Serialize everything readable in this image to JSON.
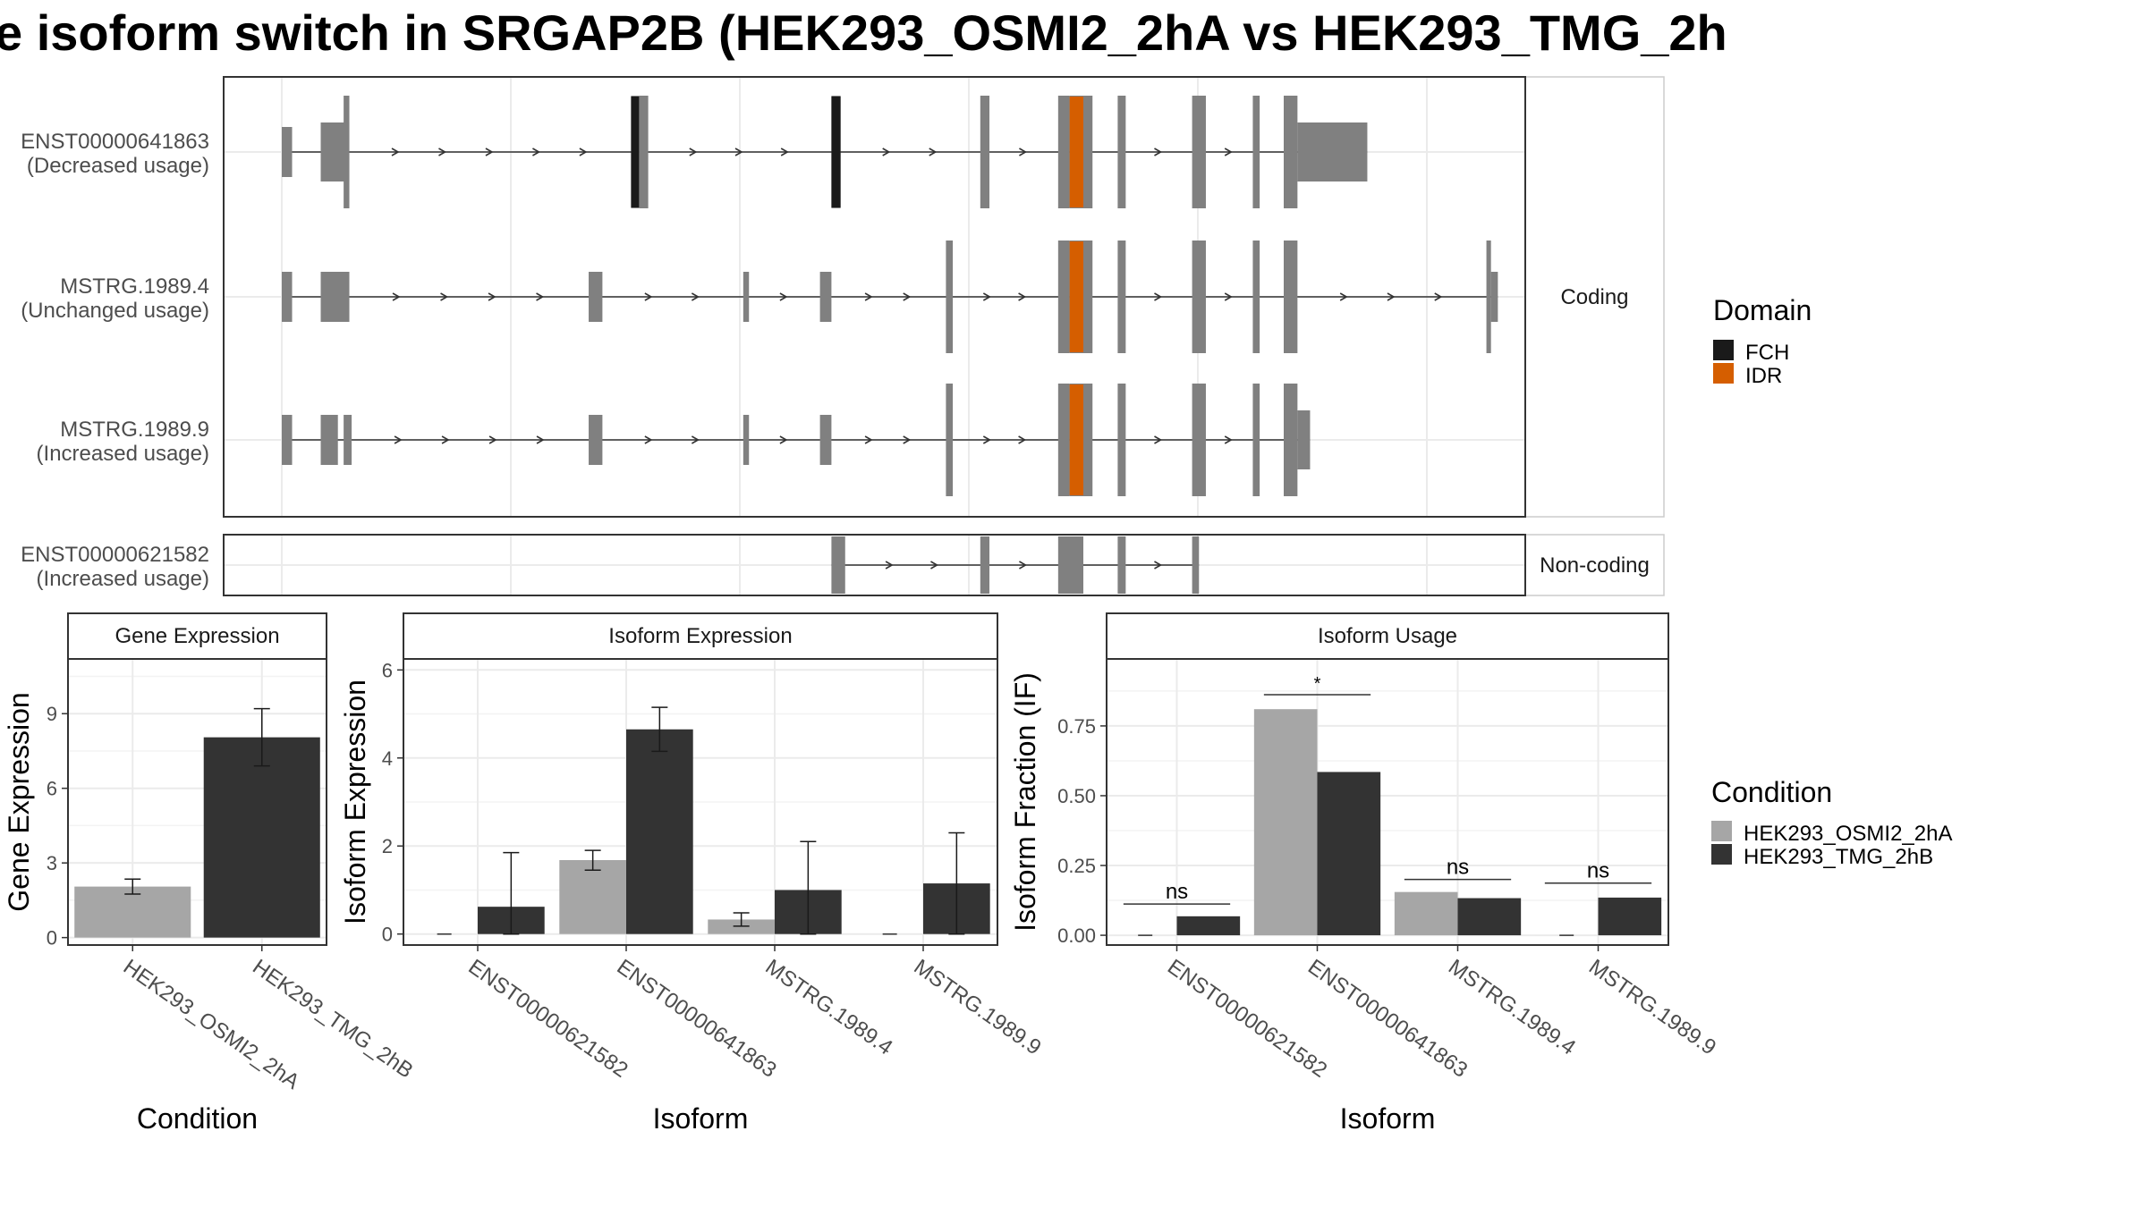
{
  "title": "e isoform switch in SRGAP2B (HEK293_OSMI2_2hA vs HEK293_TMG_2h",
  "colors": {
    "exon": "#808080",
    "fch": "#1a1a1a",
    "idr": "#d55e00",
    "cond_a": "#a6a6a6",
    "cond_b": "#333333",
    "grid": "#ebebeb",
    "frame": "#333333"
  },
  "structure": {
    "facets": [
      "Coding",
      "Non-coding"
    ],
    "transcripts": [
      {
        "id": "ENST00000641863",
        "usage": "(Decreased usage)",
        "facet": "Coding",
        "exons": [
          [
            0,
            9,
            "s"
          ],
          [
            34,
            59,
            "m"
          ],
          [
            54,
            59,
            "t"
          ],
          [
            305,
            312,
            "t"
          ],
          [
            312,
            320,
            "t"
          ],
          [
            480,
            488,
            "t"
          ],
          [
            610,
            618,
            "t"
          ],
          [
            678,
            688,
            "t"
          ],
          [
            688,
            708,
            "t"
          ],
          [
            730,
            737,
            "t"
          ],
          [
            795,
            807,
            "t"
          ],
          [
            848,
            854,
            "t"
          ],
          [
            875,
            887,
            "t"
          ],
          [
            887,
            948,
            "m"
          ]
        ],
        "domains": [
          [
            305,
            312,
            "FCH"
          ],
          [
            480,
            488,
            "FCH"
          ],
          [
            688,
            700,
            "IDR"
          ]
        ]
      },
      {
        "id": "MSTRG.1989.4",
        "usage": "(Unchanged usage)",
        "facet": "Coding",
        "exons": [
          [
            0,
            9,
            "s"
          ],
          [
            34,
            59,
            "s"
          ],
          [
            268,
            280,
            "s"
          ],
          [
            403,
            408,
            "s"
          ],
          [
            470,
            480,
            "s"
          ],
          [
            580,
            586,
            "t"
          ],
          [
            678,
            688,
            "t"
          ],
          [
            688,
            708,
            "t"
          ],
          [
            730,
            737,
            "t"
          ],
          [
            795,
            807,
            "t"
          ],
          [
            848,
            854,
            "t"
          ],
          [
            875,
            887,
            "t"
          ],
          [
            1052,
            1056,
            "t"
          ],
          [
            1056,
            1062,
            "s"
          ]
        ],
        "domains": [
          [
            688,
            700,
            "IDR"
          ]
        ]
      },
      {
        "id": "MSTRG.1989.9",
        "usage": "(Increased usage)",
        "facet": "Coding",
        "exons": [
          [
            0,
            9,
            "s"
          ],
          [
            34,
            49,
            "s"
          ],
          [
            54,
            61,
            "s"
          ],
          [
            268,
            280,
            "s"
          ],
          [
            403,
            408,
            "s"
          ],
          [
            470,
            480,
            "s"
          ],
          [
            580,
            586,
            "t"
          ],
          [
            678,
            688,
            "t"
          ],
          [
            688,
            708,
            "t"
          ],
          [
            730,
            737,
            "t"
          ],
          [
            795,
            807,
            "t"
          ],
          [
            848,
            854,
            "t"
          ],
          [
            875,
            887,
            "t"
          ],
          [
            887,
            898,
            "m"
          ]
        ],
        "domains": [
          [
            688,
            700,
            "IDR"
          ]
        ]
      },
      {
        "id": "ENST00000621582",
        "usage": "(Increased usage)",
        "facet": "Non-coding",
        "exons": [
          [
            480,
            492,
            "s"
          ],
          [
            610,
            618,
            "s"
          ],
          [
            678,
            700,
            "s"
          ],
          [
            730,
            737,
            "s"
          ],
          [
            795,
            801,
            "s"
          ]
        ],
        "domains": []
      }
    ],
    "domain_legend": {
      "title": "Domain",
      "items": [
        {
          "label": "FCH",
          "color": "#1a1a1a"
        },
        {
          "label": "IDR",
          "color": "#d55e00"
        }
      ]
    }
  },
  "chart_data": [
    {
      "type": "bar",
      "title": "Gene Expression",
      "xlabel": "Condition",
      "ylabel": "Gene Expression",
      "categories": [
        "HEK293_OSMI2_2hA",
        "HEK293_TMG_2hB"
      ],
      "values": [
        2.05,
        8.05
      ],
      "errors": [
        [
          1.75,
          2.35
        ],
        [
          6.9,
          9.2
        ]
      ],
      "ylim": [
        -0.3,
        11.2
      ],
      "yticks": [
        0,
        3,
        6,
        9
      ],
      "ytick_labels": [
        "0",
        "3",
        "6",
        "9"
      ],
      "grid": true
    },
    {
      "type": "bar",
      "title": "Isoform Expression",
      "xlabel": "Isoform",
      "ylabel": "Isoform Expression",
      "categories": [
        "ENST00000621582",
        "ENST00000641863",
        "MSTRG.1989.4",
        "MSTRG.1989.9"
      ],
      "series": [
        {
          "name": "HEK293_OSMI2_2hA",
          "values": [
            0,
            1.68,
            0.33,
            0
          ],
          "errors": [
            [
              0,
              0
            ],
            [
              1.45,
              1.9
            ],
            [
              0.18,
              0.48
            ],
            [
              0,
              0
            ]
          ]
        },
        {
          "name": "HEK293_TMG_2hB",
          "values": [
            0.62,
            4.65,
            1.0,
            1.15
          ],
          "errors": [
            [
              0,
              1.85
            ],
            [
              4.15,
              5.15
            ],
            [
              0,
              2.1
            ],
            [
              0,
              2.3
            ]
          ]
        }
      ],
      "ylim": [
        -0.25,
        6.25
      ],
      "yticks": [
        0,
        2,
        4,
        6
      ],
      "ytick_labels": [
        "0",
        "2",
        "4",
        "6"
      ],
      "grid": true
    },
    {
      "type": "bar",
      "title": "Isoform Usage",
      "xlabel": "Isoform",
      "ylabel": "Isoform Fraction (IF)",
      "categories": [
        "ENST00000621582",
        "ENST00000641863",
        "MSTRG.1989.4",
        "MSTRG.1989.9"
      ],
      "series": [
        {
          "name": "HEK293_OSMI2_2hA",
          "values": [
            0,
            0.81,
            0.155,
            0
          ]
        },
        {
          "name": "HEK293_TMG_2hB",
          "values": [
            0.068,
            0.585,
            0.133,
            0.135
          ]
        }
      ],
      "significance": [
        {
          "label": "ns",
          "y": 0.112
        },
        {
          "label": "*",
          "y": 0.862
        },
        {
          "label": "ns",
          "y": 0.2
        },
        {
          "label": "ns",
          "y": 0.187
        }
      ],
      "ylim": [
        -0.035,
        0.99
      ],
      "yticks": [
        0,
        0.25,
        0.5,
        0.75
      ],
      "ytick_labels": [
        "0.00",
        "0.25",
        "0.50",
        "0.75"
      ],
      "grid": true
    }
  ],
  "condition_legend": {
    "title": "Condition",
    "items": [
      {
        "label": "HEK293_OSMI2_2hA",
        "color": "#a6a6a6"
      },
      {
        "label": "HEK293_TMG_2hB",
        "color": "#333333"
      }
    ]
  }
}
